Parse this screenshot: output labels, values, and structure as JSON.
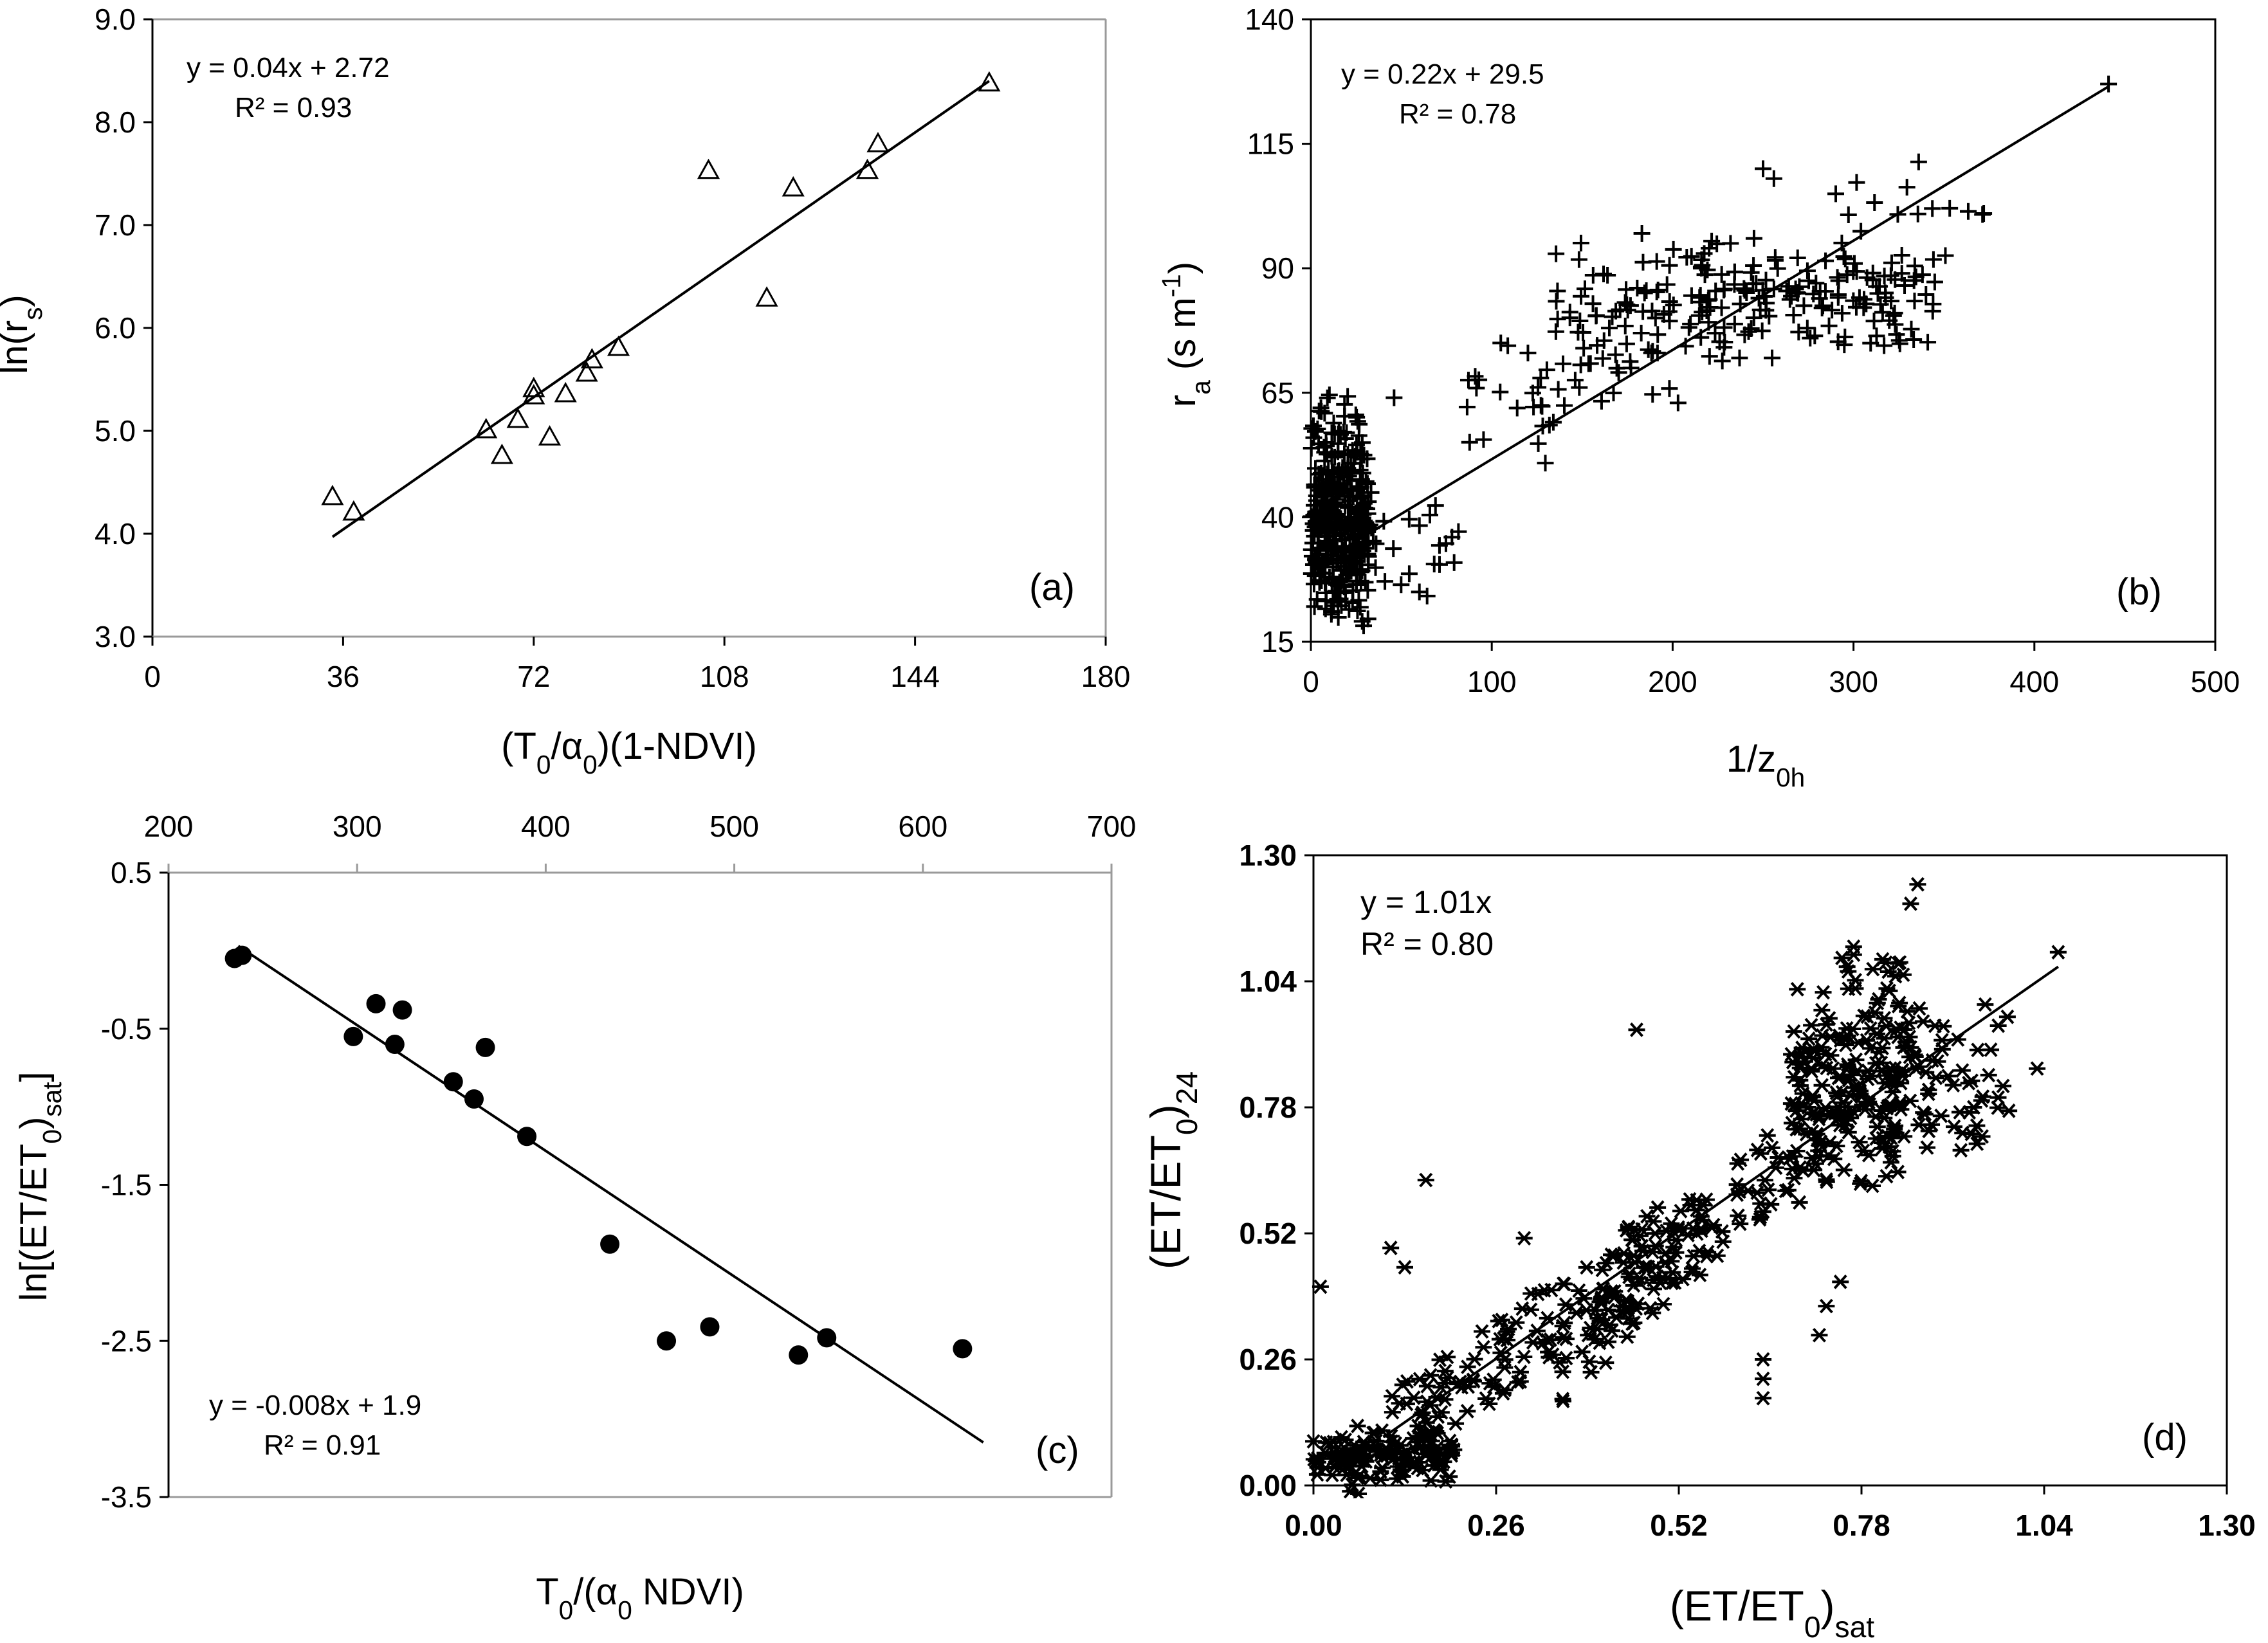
{
  "chart_data": [
    {
      "id": "a",
      "type": "scatter",
      "panel_label": "(a)",
      "xlabel": {
        "main": "(T",
        "sub": "0",
        "rest": "/α",
        "sub2": "0",
        "end": ")(1-NDVI)"
      },
      "ylabel": {
        "main": "ln(r",
        "sub": "s",
        "end": ")"
      },
      "xlim": [
        0,
        180
      ],
      "ylim": [
        3.0,
        9.0
      ],
      "xticks": [
        0,
        36,
        72,
        108,
        144,
        180
      ],
      "yticks": [
        3.0,
        4.0,
        5.0,
        6.0,
        7.0,
        8.0,
        9.0
      ],
      "xtick_labels": [
        "0",
        "36",
        "72",
        "108",
        "144",
        "180"
      ],
      "ytick_labels": [
        "3.0",
        "4.0",
        "5.0",
        "6.0",
        "7.0",
        "8.0",
        "9.0"
      ],
      "equation": "y = 0.04x + 2.72",
      "r2": "R² = 0.93",
      "marker": "triangle",
      "fit": {
        "x": [
          34,
          158
        ],
        "y": [
          3.97,
          8.4
        ]
      },
      "points": [
        [
          34,
          4.35
        ],
        [
          38,
          4.2
        ],
        [
          63,
          5.0
        ],
        [
          66,
          4.75
        ],
        [
          69,
          5.1
        ],
        [
          72,
          5.4
        ],
        [
          72,
          5.33
        ],
        [
          75,
          4.93
        ],
        [
          78,
          5.35
        ],
        [
          82,
          5.55
        ],
        [
          83,
          5.68
        ],
        [
          88,
          5.8
        ],
        [
          105,
          7.52
        ],
        [
          116,
          6.28
        ],
        [
          121,
          7.35
        ],
        [
          135,
          7.52
        ],
        [
          137,
          7.78
        ],
        [
          158,
          8.37
        ]
      ]
    },
    {
      "id": "b",
      "type": "scatter",
      "panel_label": "(b)",
      "xlabel": {
        "main": "1/z",
        "sub": "0h",
        "end": ""
      },
      "ylabel": {
        "main": "r",
        "sub": "a",
        "end": " (s m",
        "sup": "-1",
        "close": ")"
      },
      "xlim": [
        0,
        500
      ],
      "ylim": [
        15,
        140
      ],
      "xticks": [
        0,
        100,
        200,
        300,
        400,
        500
      ],
      "yticks": [
        15,
        40,
        65,
        90,
        115,
        140
      ],
      "xtick_labels": [
        "0",
        "100",
        "200",
        "300",
        "400",
        "500"
      ],
      "ytick_labels": [
        "15",
        "40",
        "65",
        "90",
        "115",
        "140"
      ],
      "equation": "y = 0.22x + 29.5",
      "r2": "R² = 0.78",
      "marker": "plus",
      "fit": {
        "x": [
          15,
          441
        ],
        "y": [
          33,
          126.5
        ]
      },
      "clusters": [
        {
          "x": [
            0,
            32
          ],
          "y": [
            18,
            60
          ],
          "n": 380
        },
        {
          "x": [
            2,
            28
          ],
          "y": [
            55,
            66
          ],
          "n": 20
        },
        {
          "x": [
            30,
            85
          ],
          "y": [
            22,
            48
          ],
          "n": 22
        },
        {
          "x": [
            85,
            135
          ],
          "y": [
            50,
            78
          ],
          "n": 22
        },
        {
          "x": [
            135,
            230
          ],
          "y": [
            62,
            98
          ],
          "n": 95
        },
        {
          "x": [
            210,
            345
          ],
          "y": [
            72,
            97
          ],
          "n": 135
        },
        {
          "x": [
            290,
            380
          ],
          "y": [
            84,
            114
          ],
          "n": 18
        }
      ],
      "points": [
        [
          441,
          127
        ],
        [
          250,
          110
        ],
        [
          256,
          108
        ],
        [
          372,
          101
        ],
        [
          183,
          97
        ],
        [
          232,
          95
        ],
        [
          245,
          96
        ],
        [
          237,
          72
        ],
        [
          255,
          72
        ],
        [
          60,
          25
        ],
        [
          78,
          36
        ],
        [
          46,
          64
        ],
        [
          105,
          75
        ],
        [
          120,
          73
        ],
        [
          165,
          78
        ]
      ]
    },
    {
      "id": "c",
      "type": "scatter",
      "panel_label": "(c)",
      "xlabel": {
        "main": "T",
        "sub": "0",
        "rest": "/(α",
        "sub2": "0",
        "end": " NDVI)"
      },
      "ylabel": {
        "main": "ln[(ET/ET",
        "sub": "0",
        "end": ")",
        "sub2": "sat",
        "close": "]"
      },
      "xlim": [
        200,
        700
      ],
      "ylim": [
        -3.5,
        0.5
      ],
      "xticks": [
        200,
        300,
        400,
        500,
        600,
        700
      ],
      "yticks": [
        -3.5,
        -2.5,
        -1.5,
        -0.5,
        0.5
      ],
      "xtick_labels": [
        "200",
        "300",
        "400",
        "500",
        "600",
        "700"
      ],
      "ytick_labels": [
        "-3.5",
        "-2.5",
        "-1.5",
        "-0.5",
        "0.5"
      ],
      "equation": "y = -0.008x + 1.9",
      "r2": "R² = 0.91",
      "marker": "circle",
      "fit": {
        "x": [
          237,
          632
        ],
        "y": [
          0.03,
          -3.15
        ]
      },
      "points": [
        [
          235,
          -0.05
        ],
        [
          239,
          -0.03
        ],
        [
          298,
          -0.55
        ],
        [
          310,
          -0.34
        ],
        [
          320,
          -0.6
        ],
        [
          324,
          -0.38
        ],
        [
          351,
          -0.84
        ],
        [
          362,
          -0.95
        ],
        [
          368,
          -0.62
        ],
        [
          390,
          -1.19
        ],
        [
          434,
          -1.88
        ],
        [
          464,
          -2.5
        ],
        [
          487,
          -2.41
        ],
        [
          534,
          -2.59
        ],
        [
          549,
          -2.48
        ],
        [
          621,
          -2.55
        ]
      ]
    },
    {
      "id": "d",
      "type": "scatter",
      "panel_label": "(d)",
      "xlabel": {
        "main": "(ET/ET",
        "sub": "0",
        "end": ")",
        "sub2": "sat"
      },
      "ylabel": {
        "main": "(ET/ET",
        "sub": "0",
        "end": ")",
        "sub2": "24"
      },
      "xlim": [
        0.0,
        1.3
      ],
      "ylim": [
        0.0,
        1.3
      ],
      "xticks": [
        0.0,
        0.26,
        0.52,
        0.78,
        1.04,
        1.3
      ],
      "yticks": [
        0.0,
        0.26,
        0.52,
        0.78,
        1.04,
        1.3
      ],
      "xtick_labels": [
        "0.00",
        "0.26",
        "0.52",
        "0.78",
        "1.04",
        "1.30"
      ],
      "ytick_labels": [
        "0.00",
        "0.26",
        "0.52",
        "0.78",
        "1.04",
        "1.30"
      ],
      "equation": "y = 1.01x",
      "r2": "R² = 0.80",
      "marker": "asterisk",
      "fit": {
        "x": [
          0.1,
          1.06
        ],
        "y": [
          0.1,
          1.07
        ]
      },
      "clusters": [
        {
          "x": [
            0.0,
            0.2
          ],
          "y": [
            0.0,
            0.12
          ],
          "n": 110
        },
        {
          "x": [
            0.05,
            0.55
          ],
          "y": [
            0.05,
            0.55
          ],
          "n": 170,
          "diag": true
        },
        {
          "x": [
            0.35,
            0.72
          ],
          "y": [
            0.25,
            0.75
          ],
          "n": 110,
          "diag": true
        },
        {
          "x": [
            0.68,
            0.85
          ],
          "y": [
            0.55,
            1.15
          ],
          "n": 190
        },
        {
          "x": [
            0.8,
            1.0
          ],
          "y": [
            0.62,
            1.06
          ],
          "n": 70
        }
      ],
      "points": [
        [
          0.01,
          0.41
        ],
        [
          0.16,
          0.63
        ],
        [
          0.11,
          0.49
        ],
        [
          0.13,
          0.45
        ],
        [
          0.3,
          0.51
        ],
        [
          0.46,
          0.94
        ],
        [
          0.64,
          0.26
        ],
        [
          0.64,
          0.22
        ],
        [
          0.64,
          0.18
        ],
        [
          0.72,
          0.31
        ],
        [
          0.73,
          0.37
        ],
        [
          0.75,
          0.42
        ],
        [
          0.86,
          1.24
        ],
        [
          0.85,
          1.2
        ],
        [
          1.06,
          1.1
        ],
        [
          1.03,
          0.86
        ],
        [
          0.92,
          0.77
        ],
        [
          0.27,
          0.19
        ]
      ]
    }
  ]
}
